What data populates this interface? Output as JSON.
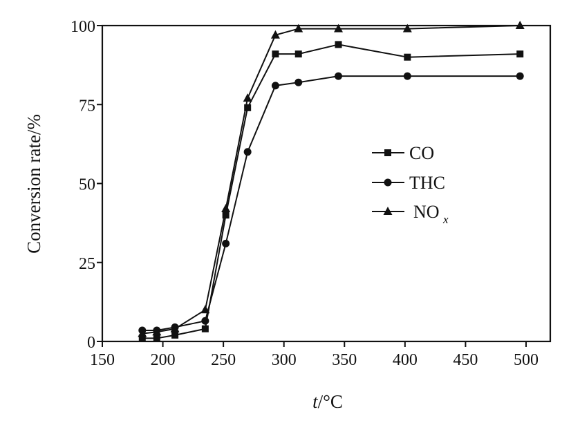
{
  "chart_data": {
    "type": "line",
    "title": "",
    "xlabel": "t/°C",
    "xlabel_var": "t",
    "xlabel_unit": "/°C",
    "ylabel": "Conversion rate/%",
    "xlim": [
      150,
      520
    ],
    "ylim": [
      0,
      100
    ],
    "xticks": [
      150,
      200,
      250,
      300,
      350,
      400,
      450,
      500
    ],
    "yticks": [
      0,
      25,
      50,
      75,
      100
    ],
    "grid": false,
    "legend_position": "right-middle",
    "series": [
      {
        "name": "CO",
        "legend_label": "CO",
        "marker": "square",
        "x": [
          183,
          195,
          210,
          235,
          252,
          270,
          293,
          312,
          345,
          402,
          495
        ],
        "y": [
          1,
          1,
          2,
          4,
          40,
          74,
          91,
          91,
          94,
          90,
          91
        ]
      },
      {
        "name": "THC",
        "legend_label": "THC",
        "marker": "circle",
        "x": [
          183,
          195,
          210,
          235,
          252,
          270,
          293,
          312,
          345,
          402,
          495
        ],
        "y": [
          3.5,
          3.5,
          4.5,
          6.5,
          31,
          60,
          81,
          82,
          84,
          84,
          84
        ]
      },
      {
        "name": "NOx",
        "legend_label": "NO",
        "legend_sub": "x",
        "marker": "triangle",
        "x": [
          183,
          195,
          210,
          235,
          252,
          270,
          293,
          312,
          345,
          402,
          495
        ],
        "y": [
          2.5,
          3,
          4,
          10,
          42,
          77,
          97,
          99,
          99,
          99,
          100
        ]
      }
    ]
  }
}
